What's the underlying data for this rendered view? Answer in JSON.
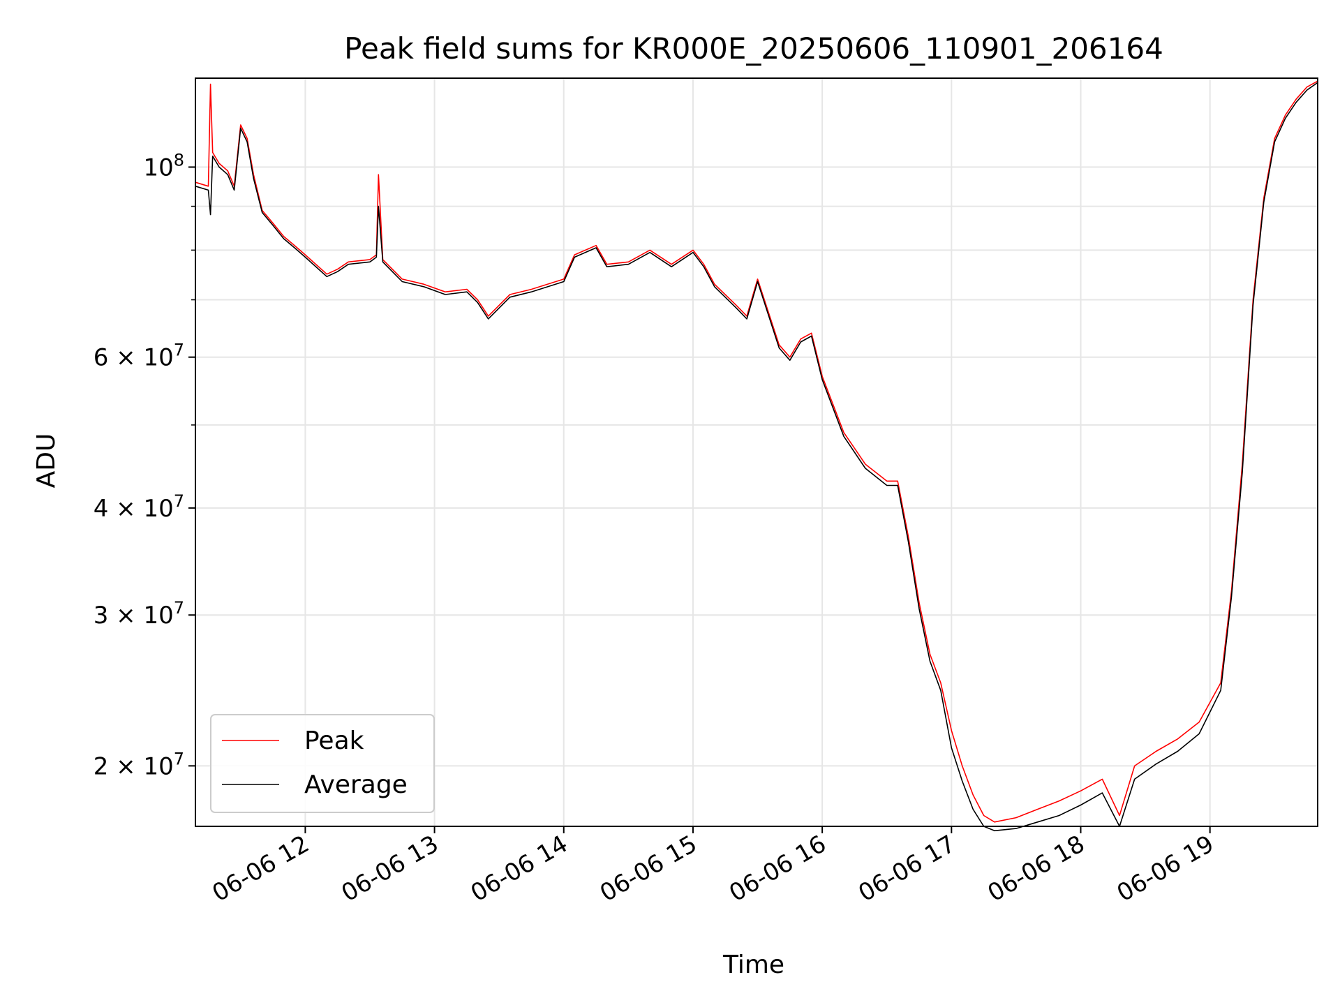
{
  "chart_data": {
    "type": "line",
    "title": "Peak field sums for KR000E_20250606_110901_206164",
    "xlabel": "Time",
    "ylabel": "ADU",
    "yscale": "log",
    "grid": true,
    "legend_position": "lower-left",
    "xlim": [
      "2025-06-06 11:09",
      "2025-06-06 19:50"
    ],
    "ylim": [
      17000000,
      127000000
    ],
    "x_ticks": [
      "06-06 12",
      "06-06 13",
      "06-06 14",
      "06-06 15",
      "06-06 16",
      "06-06 17",
      "06-06 18",
      "06-06 19"
    ],
    "x_tick_times": [
      "2025-06-06 12:00",
      "2025-06-06 13:00",
      "2025-06-06 14:00",
      "2025-06-06 15:00",
      "2025-06-06 16:00",
      "2025-06-06 17:00",
      "2025-06-06 18:00",
      "2025-06-06 19:00"
    ],
    "y_ticks": [
      {
        "value": 100000000,
        "base": "10",
        "exp": "8"
      },
      {
        "value": 60000000,
        "base": "6 × 10",
        "exp": "7"
      },
      {
        "value": 40000000,
        "base": "4 × 10",
        "exp": "7"
      },
      {
        "value": 30000000,
        "base": "3 × 10",
        "exp": "7"
      },
      {
        "value": 20000000,
        "base": "2 × 10",
        "exp": "7"
      }
    ],
    "y_minor_ticks": [
      50000000,
      70000000,
      80000000,
      90000000
    ],
    "series": [
      {
        "name": "Peak",
        "color": "#ff0000",
        "x": [
          "2025-06-06 11:09",
          "2025-06-06 11:15",
          "2025-06-06 11:16",
          "2025-06-06 11:17",
          "2025-06-06 11:20",
          "2025-06-06 11:24",
          "2025-06-06 11:27",
          "2025-06-06 11:30",
          "2025-06-06 11:33",
          "2025-06-06 11:36",
          "2025-06-06 11:40",
          "2025-06-06 11:45",
          "2025-06-06 11:50",
          "2025-06-06 11:55",
          "2025-06-06 12:00",
          "2025-06-06 12:10",
          "2025-06-06 12:15",
          "2025-06-06 12:20",
          "2025-06-06 12:30",
          "2025-06-06 12:33",
          "2025-06-06 12:34",
          "2025-06-06 12:36",
          "2025-06-06 12:45",
          "2025-06-06 12:55",
          "2025-06-06 13:05",
          "2025-06-06 13:15",
          "2025-06-06 13:20",
          "2025-06-06 13:25",
          "2025-06-06 13:35",
          "2025-06-06 13:45",
          "2025-06-06 14:00",
          "2025-06-06 14:05",
          "2025-06-06 14:15",
          "2025-06-06 14:20",
          "2025-06-06 14:30",
          "2025-06-06 14:40",
          "2025-06-06 14:50",
          "2025-06-06 15:00",
          "2025-06-06 15:05",
          "2025-06-06 15:10",
          "2025-06-06 15:20",
          "2025-06-06 15:25",
          "2025-06-06 15:30",
          "2025-06-06 15:40",
          "2025-06-06 15:45",
          "2025-06-06 15:50",
          "2025-06-06 15:55",
          "2025-06-06 16:00",
          "2025-06-06 16:10",
          "2025-06-06 16:20",
          "2025-06-06 16:30",
          "2025-06-06 16:35",
          "2025-06-06 16:40",
          "2025-06-06 16:45",
          "2025-06-06 16:50",
          "2025-06-06 16:55",
          "2025-06-06 17:00",
          "2025-06-06 17:05",
          "2025-06-06 17:10",
          "2025-06-06 17:15",
          "2025-06-06 17:20",
          "2025-06-06 17:30",
          "2025-06-06 17:40",
          "2025-06-06 17:50",
          "2025-06-06 18:00",
          "2025-06-06 18:10",
          "2025-06-06 18:18",
          "2025-06-06 18:25",
          "2025-06-06 18:35",
          "2025-06-06 18:45",
          "2025-06-06 18:55",
          "2025-06-06 19:05",
          "2025-06-06 19:10",
          "2025-06-06 19:15",
          "2025-06-06 19:20",
          "2025-06-06 19:25",
          "2025-06-06 19:30",
          "2025-06-06 19:35",
          "2025-06-06 19:40",
          "2025-06-06 19:45",
          "2025-06-06 19:50"
        ],
        "values": [
          96000000,
          95000000,
          125000000,
          104000000,
          101000000,
          99000000,
          95000000,
          112000000,
          108000000,
          98000000,
          89000000,
          86000000,
          83000000,
          81000000,
          79000000,
          75000000,
          76000000,
          77500000,
          78000000,
          79000000,
          98000000,
          78000000,
          74000000,
          73000000,
          71500000,
          72000000,
          70000000,
          67000000,
          71000000,
          72000000,
          74000000,
          79000000,
          81000000,
          77000000,
          77500000,
          80000000,
          77000000,
          80000000,
          77000000,
          73000000,
          69000000,
          67000000,
          74000000,
          62000000,
          60000000,
          63000000,
          64000000,
          57000000,
          49000000,
          45000000,
          43000000,
          43000000,
          37000000,
          31000000,
          27000000,
          25000000,
          22000000,
          20000000,
          18500000,
          17500000,
          17200000,
          17400000,
          17800000,
          18200000,
          18700000,
          19300000,
          17500000,
          20000000,
          20800000,
          21500000,
          22500000,
          25000000,
          32000000,
          45000000,
          70000000,
          92000000,
          108000000,
          115000000,
          120000000,
          124000000,
          126000000
        ]
      },
      {
        "name": "Average",
        "color": "#000000",
        "x": [
          "2025-06-06 11:09",
          "2025-06-06 11:15",
          "2025-06-06 11:16",
          "2025-06-06 11:17",
          "2025-06-06 11:20",
          "2025-06-06 11:24",
          "2025-06-06 11:27",
          "2025-06-06 11:30",
          "2025-06-06 11:33",
          "2025-06-06 11:36",
          "2025-06-06 11:40",
          "2025-06-06 11:45",
          "2025-06-06 11:50",
          "2025-06-06 11:55",
          "2025-06-06 12:00",
          "2025-06-06 12:10",
          "2025-06-06 12:15",
          "2025-06-06 12:20",
          "2025-06-06 12:30",
          "2025-06-06 12:33",
          "2025-06-06 12:34",
          "2025-06-06 12:36",
          "2025-06-06 12:45",
          "2025-06-06 12:55",
          "2025-06-06 13:05",
          "2025-06-06 13:15",
          "2025-06-06 13:20",
          "2025-06-06 13:25",
          "2025-06-06 13:35",
          "2025-06-06 13:45",
          "2025-06-06 14:00",
          "2025-06-06 14:05",
          "2025-06-06 14:15",
          "2025-06-06 14:20",
          "2025-06-06 14:30",
          "2025-06-06 14:40",
          "2025-06-06 14:50",
          "2025-06-06 15:00",
          "2025-06-06 15:05",
          "2025-06-06 15:10",
          "2025-06-06 15:20",
          "2025-06-06 15:25",
          "2025-06-06 15:30",
          "2025-06-06 15:40",
          "2025-06-06 15:45",
          "2025-06-06 15:50",
          "2025-06-06 15:55",
          "2025-06-06 16:00",
          "2025-06-06 16:10",
          "2025-06-06 16:20",
          "2025-06-06 16:30",
          "2025-06-06 16:35",
          "2025-06-06 16:40",
          "2025-06-06 16:45",
          "2025-06-06 16:50",
          "2025-06-06 16:55",
          "2025-06-06 17:00",
          "2025-06-06 17:05",
          "2025-06-06 17:10",
          "2025-06-06 17:15",
          "2025-06-06 17:20",
          "2025-06-06 17:30",
          "2025-06-06 17:40",
          "2025-06-06 17:50",
          "2025-06-06 18:00",
          "2025-06-06 18:10",
          "2025-06-06 18:18",
          "2025-06-06 18:25",
          "2025-06-06 18:35",
          "2025-06-06 18:45",
          "2025-06-06 18:55",
          "2025-06-06 19:05",
          "2025-06-06 19:10",
          "2025-06-06 19:15",
          "2025-06-06 19:20",
          "2025-06-06 19:25",
          "2025-06-06 19:30",
          "2025-06-06 19:35",
          "2025-06-06 19:40",
          "2025-06-06 19:45",
          "2025-06-06 19:50"
        ],
        "values": [
          95000000,
          94000000,
          88000000,
          103000000,
          100000000,
          98000000,
          94000000,
          111000000,
          107000000,
          97000000,
          88500000,
          85500000,
          82500000,
          80500000,
          78500000,
          74500000,
          75500000,
          77000000,
          77500000,
          78500000,
          90000000,
          77500000,
          73500000,
          72500000,
          71000000,
          71500000,
          69500000,
          66500000,
          70500000,
          71500000,
          73500000,
          78500000,
          80500000,
          76500000,
          77000000,
          79500000,
          76500000,
          79500000,
          76500000,
          72500000,
          68500000,
          66500000,
          73500000,
          61500000,
          59500000,
          62500000,
          63500000,
          56500000,
          48500000,
          44500000,
          42500000,
          42500000,
          36500000,
          30500000,
          26500000,
          24500000,
          21000000,
          19200000,
          17800000,
          17000000,
          16800000,
          16900000,
          17200000,
          17500000,
          18000000,
          18600000,
          17000000,
          19300000,
          20100000,
          20800000,
          21800000,
          24500000,
          31500000,
          44000000,
          69000000,
          91000000,
          107000000,
          114000000,
          119000000,
          123000000,
          125500000
        ]
      }
    ]
  }
}
